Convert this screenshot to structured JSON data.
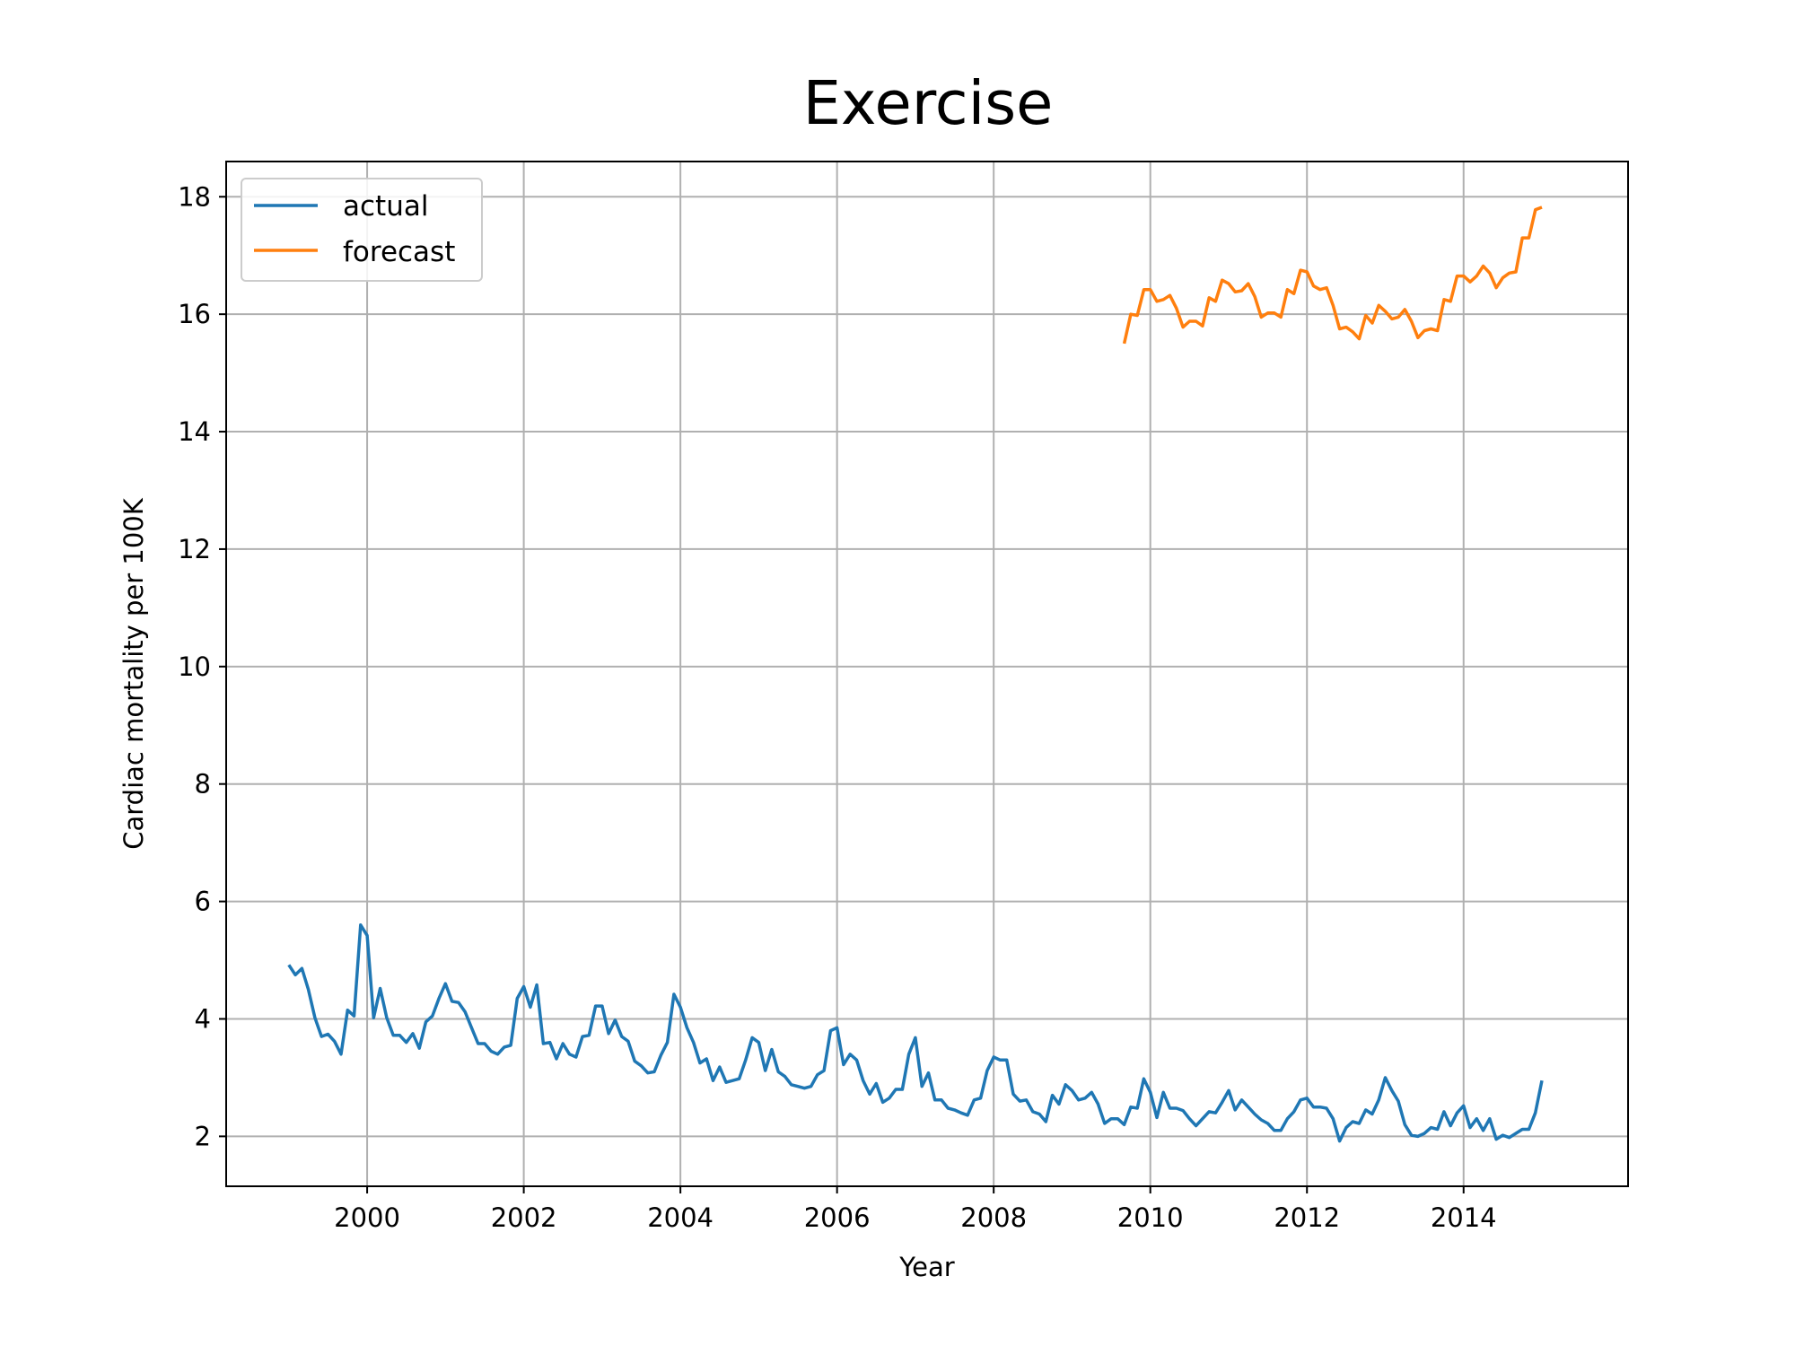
{
  "chart_data": {
    "type": "line",
    "title": "Exercise",
    "xlabel": "Year",
    "ylabel": "Cardiac mortality per 100K",
    "xlim": [
      1998.2,
      2016.1
    ],
    "ylim": [
      1.15,
      18.6
    ],
    "x_ticks": [
      2000,
      2002,
      2004,
      2006,
      2008,
      2010,
      2012,
      2014
    ],
    "y_ticks": [
      2,
      4,
      6,
      8,
      10,
      12,
      14,
      16,
      18
    ],
    "x_tick_labels": [
      "2000",
      "2002",
      "2004",
      "2006",
      "2008",
      "2010",
      "2012",
      "2014"
    ],
    "y_tick_labels": [
      "2",
      "4",
      "6",
      "8",
      "10",
      "12",
      "14",
      "16",
      "18"
    ],
    "grid": true,
    "legend_position": "top-left",
    "series": [
      {
        "name": "actual",
        "color": "#1f77b4",
        "start": 1999.0,
        "step": 0.0833333,
        "values": [
          4.92,
          4.75,
          4.86,
          4.5,
          4.02,
          3.7,
          3.74,
          3.62,
          3.4,
          4.15,
          4.05,
          5.6,
          5.42,
          4.02,
          4.52,
          4.02,
          3.72,
          3.72,
          3.6,
          3.75,
          3.5,
          3.95,
          4.05,
          4.35,
          4.6,
          4.3,
          4.28,
          4.12,
          3.85,
          3.58,
          3.58,
          3.45,
          3.4,
          3.52,
          3.55,
          4.35,
          4.55,
          4.2,
          4.58,
          3.58,
          3.6,
          3.32,
          3.58,
          3.4,
          3.35,
          3.7,
          3.72,
          4.22,
          4.22,
          3.75,
          3.98,
          3.7,
          3.62,
          3.28,
          3.2,
          3.08,
          3.1,
          3.38,
          3.6,
          4.42,
          4.2,
          3.85,
          3.6,
          3.25,
          3.32,
          2.95,
          3.18,
          2.92,
          2.95,
          2.98,
          3.3,
          3.68,
          3.6,
          3.12,
          3.48,
          3.1,
          3.02,
          2.88,
          2.85,
          2.82,
          2.85,
          3.05,
          3.12,
          3.8,
          3.85,
          3.22,
          3.4,
          3.3,
          2.95,
          2.72,
          2.9,
          2.58,
          2.65,
          2.8,
          2.8,
          3.4,
          3.68,
          2.85,
          3.08,
          2.62,
          2.62,
          2.48,
          2.45,
          2.4,
          2.36,
          2.62,
          2.65,
          3.12,
          3.35,
          3.3,
          3.3,
          2.72,
          2.6,
          2.62,
          2.42,
          2.38,
          2.25,
          2.7,
          2.55,
          2.88,
          2.78,
          2.62,
          2.65,
          2.75,
          2.55,
          2.22,
          2.3,
          2.3,
          2.2,
          2.5,
          2.48,
          2.98,
          2.75,
          2.32,
          2.75,
          2.48,
          2.48,
          2.44,
          2.3,
          2.18,
          2.3,
          2.42,
          2.4,
          2.58,
          2.78,
          2.45,
          2.62,
          2.5,
          2.38,
          2.28,
          2.22,
          2.1,
          2.1,
          2.3,
          2.42,
          2.62,
          2.65,
          2.5,
          2.5,
          2.48,
          2.3,
          1.92,
          2.15,
          2.25,
          2.22,
          2.45,
          2.38,
          2.62,
          3.0,
          2.78,
          2.6,
          2.2,
          2.02,
          2.0,
          2.05,
          2.15,
          2.12,
          2.42,
          2.18,
          2.4,
          2.52,
          2.15,
          2.3,
          2.1,
          2.3,
          1.95,
          2.02,
          1.98,
          2.05,
          2.12,
          2.12,
          2.4,
          2.95
        ]
      },
      {
        "name": "forecast",
        "color": "#ff7f0e",
        "start": 2009.667,
        "step": 0.0833333,
        "values": [
          15.5,
          16.0,
          15.98,
          16.42,
          16.42,
          16.22,
          16.25,
          16.32,
          16.1,
          15.78,
          15.88,
          15.88,
          15.8,
          16.28,
          16.22,
          16.58,
          16.52,
          16.38,
          16.4,
          16.52,
          16.3,
          15.95,
          16.02,
          16.02,
          15.95,
          16.42,
          16.35,
          16.75,
          16.72,
          16.48,
          16.42,
          16.45,
          16.15,
          15.75,
          15.78,
          15.7,
          15.58,
          15.98,
          15.85,
          16.15,
          16.05,
          15.92,
          15.95,
          16.08,
          15.88,
          15.6,
          15.72,
          15.75,
          15.72,
          16.25,
          16.22,
          16.65,
          16.65,
          16.55,
          16.65,
          16.82,
          16.7,
          16.45,
          16.62,
          16.7,
          16.72,
          17.3,
          17.3,
          17.78,
          17.82
        ]
      }
    ]
  }
}
